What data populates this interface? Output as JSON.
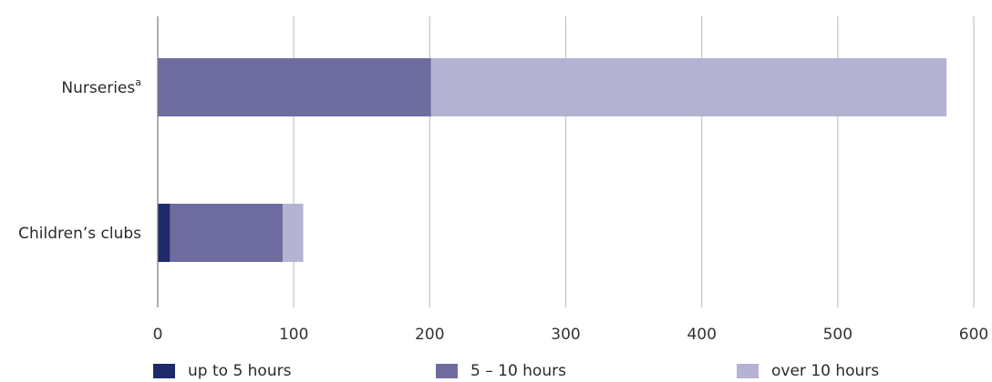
{
  "chart_data": {
    "type": "bar",
    "orientation": "horizontal",
    "stacked": true,
    "categories": [
      "Nurseries",
      "Children’s clubs"
    ],
    "category_superscripts": [
      "a",
      ""
    ],
    "series": [
      {
        "name": "up to 5 hours",
        "color": "#1f2a6b",
        "values": [
          0,
          9
        ]
      },
      {
        "name": "5 – 10 hours",
        "color": "#6e6c9e",
        "values": [
          201,
          83
        ]
      },
      {
        "name": "over 10 hours",
        "color": "#b4b3d4",
        "values": [
          379,
          15
        ]
      }
    ],
    "xlim": [
      0,
      600
    ],
    "xticks": [
      0,
      100,
      200,
      300,
      400,
      500,
      600
    ],
    "grid": "vertical",
    "legend_position": "bottom",
    "title": "",
    "xlabel": "",
    "ylabel": ""
  }
}
